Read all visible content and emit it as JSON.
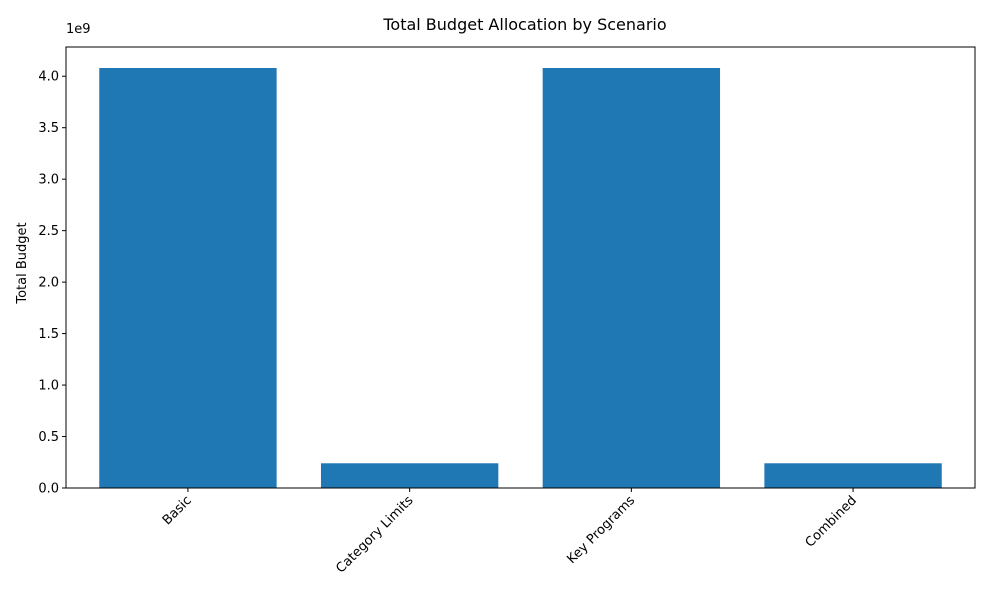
{
  "chart_data": {
    "type": "bar",
    "title": "Total Budget Allocation by Scenario",
    "xlabel": "",
    "ylabel": "Total Budget",
    "offset_label": "1e9",
    "categories": [
      "Basic",
      "Category Limits",
      "Key Programs",
      "Combined"
    ],
    "values": [
      4080000000,
      240000000,
      4080000000,
      240000000
    ],
    "ylim": [
      0,
      4284000000.0
    ],
    "yticks": [
      0,
      500000000,
      1000000000,
      1500000000,
      2000000000,
      2500000000,
      3000000000,
      3500000000,
      4000000000
    ],
    "ytick_labels": [
      "0.0",
      "0.5",
      "1.0",
      "1.5",
      "2.0",
      "2.5",
      "3.0",
      "3.5",
      "4.0"
    ],
    "bar_color": "#1f77b4",
    "grid": false,
    "legend": "none"
  }
}
